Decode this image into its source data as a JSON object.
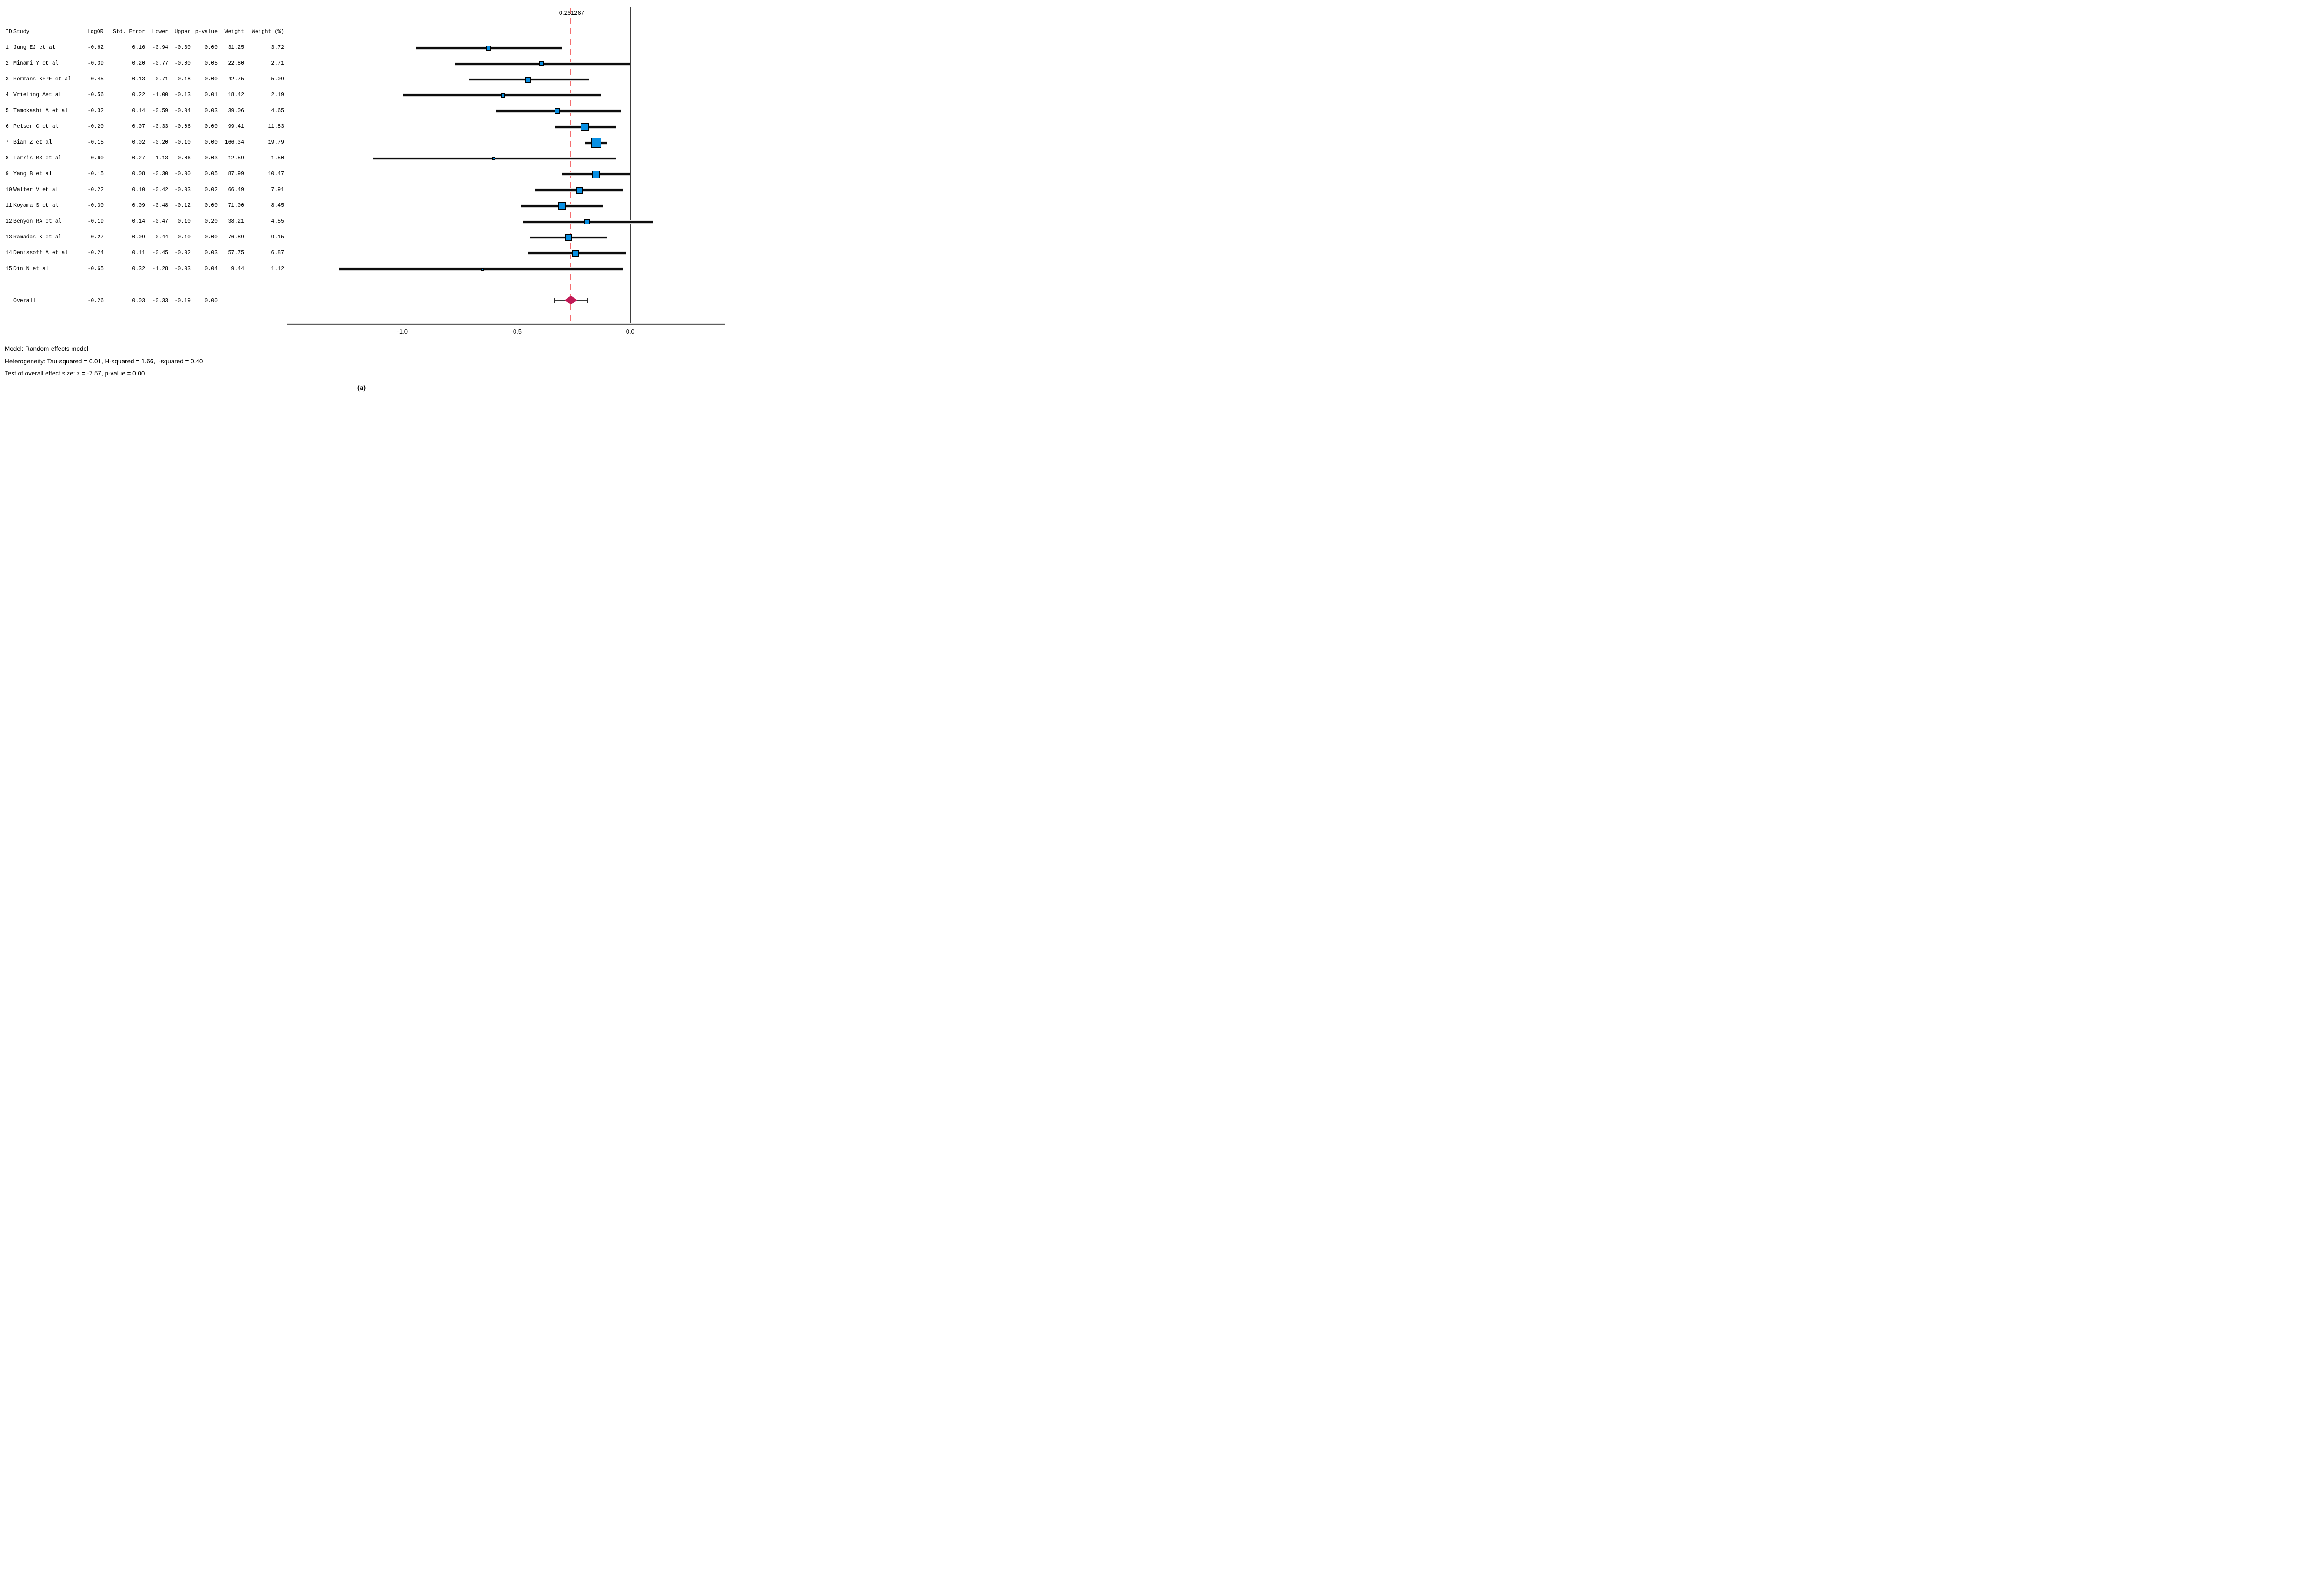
{
  "figure": {
    "caption": "(a)"
  },
  "table": {
    "headers": {
      "id": "ID",
      "study": "Study",
      "logor": "LogOR",
      "stderr": "Std. Error",
      "lower": "Lower",
      "upper": "Upper",
      "pvalue": "p-value",
      "weight": "Weight",
      "weight_pct": "Weight (%)"
    },
    "overall_label": "Overall"
  },
  "plot": {
    "effect_label": "-0.261267",
    "effect_value": -0.261267
  },
  "footer": {
    "lines": [
      "Model: Random-effects model",
      "Heterogeneity: Tau-squared = 0.01, H-squared = 1.66, I-squared = 0.40",
      "Test of overall effect size: z = -7.57, p-value = 0.00"
    ]
  },
  "colors": {
    "marker_blue": "#0890e4",
    "diamond_crimson": "#c21a57",
    "dashed_red": "#f46d6e",
    "axis_grey": "#5e5e5e",
    "ci_black": "#0d0d0d",
    "zero_line_grey": "#3d3d3d"
  },
  "chart_data": {
    "type": "forest",
    "title": "",
    "xlabel": "",
    "x_ticks": [
      -1.0,
      -0.5,
      0.0
    ],
    "x_tick_labels": [
      "-1.0",
      "-0.5",
      "0.0"
    ],
    "xlim": [
      -1.5,
      0.45
    ],
    "pooled_effect_line": -0.261267,
    "legend": "none",
    "grid": "off",
    "studies": [
      {
        "id": "1",
        "study": "Jung EJ et al",
        "logor": "-0.62",
        "se": "0.16",
        "lower": "-0.94",
        "upper": "-0.30",
        "p": "0.00",
        "weight": "31.25",
        "weight_pct": "3.72"
      },
      {
        "id": "2",
        "study": "Minami Y et al",
        "logor": "-0.39",
        "se": "0.20",
        "lower": "-0.77",
        "upper": "-0.00",
        "p": "0.05",
        "weight": "22.80",
        "weight_pct": "2.71"
      },
      {
        "id": "3",
        "study": "Hermans KEPE et al",
        "logor": "-0.45",
        "se": "0.13",
        "lower": "-0.71",
        "upper": "-0.18",
        "p": "0.00",
        "weight": "42.75",
        "weight_pct": "5.09"
      },
      {
        "id": "4",
        "study": "Vrieling Aet al",
        "logor": "-0.56",
        "se": "0.22",
        "lower": "-1.00",
        "upper": "-0.13",
        "p": "0.01",
        "weight": "18.42",
        "weight_pct": "2.19"
      },
      {
        "id": "5",
        "study": "Tamokashi A et al",
        "logor": "-0.32",
        "se": "0.14",
        "lower": "-0.59",
        "upper": "-0.04",
        "p": "0.03",
        "weight": "39.06",
        "weight_pct": "4.65"
      },
      {
        "id": "6",
        "study": "Pelser C et al",
        "logor": "-0.20",
        "se": "0.07",
        "lower": "-0.33",
        "upper": "-0.06",
        "p": "0.00",
        "weight": "99.41",
        "weight_pct": "11.83"
      },
      {
        "id": "7",
        "study": "Bian Z et al",
        "logor": "-0.15",
        "se": "0.02",
        "lower": "-0.20",
        "upper": "-0.10",
        "p": "0.00",
        "weight": "166.34",
        "weight_pct": "19.79"
      },
      {
        "id": "8",
        "study": "Farris MS et al",
        "logor": "-0.60",
        "se": "0.27",
        "lower": "-1.13",
        "upper": "-0.06",
        "p": "0.03",
        "weight": "12.59",
        "weight_pct": "1.50"
      },
      {
        "id": "9",
        "study": "Yang B et al",
        "logor": "-0.15",
        "se": "0.08",
        "lower": "-0.30",
        "upper": "-0.00",
        "p": "0.05",
        "weight": "87.99",
        "weight_pct": "10.47"
      },
      {
        "id": "10",
        "study": "Walter V et al",
        "logor": "-0.22",
        "se": "0.10",
        "lower": "-0.42",
        "upper": "-0.03",
        "p": "0.02",
        "weight": "66.49",
        "weight_pct": "7.91"
      },
      {
        "id": "11",
        "study": "Koyama S et al",
        "logor": "-0.30",
        "se": "0.09",
        "lower": "-0.48",
        "upper": "-0.12",
        "p": "0.00",
        "weight": "71.00",
        "weight_pct": "8.45"
      },
      {
        "id": "12",
        "study": "Benyon RA et al",
        "logor": "-0.19",
        "se": "0.14",
        "lower": "-0.47",
        "upper": "0.10",
        "p": "0.20",
        "weight": "38.21",
        "weight_pct": "4.55"
      },
      {
        "id": "13",
        "study": "Ramadas K et al",
        "logor": "-0.27",
        "se": "0.09",
        "lower": "-0.44",
        "upper": "-0.10",
        "p": "0.00",
        "weight": "76.89",
        "weight_pct": "9.15"
      },
      {
        "id": "14",
        "study": "Denissoff A et al",
        "logor": "-0.24",
        "se": "0.11",
        "lower": "-0.45",
        "upper": "-0.02",
        "p": "0.03",
        "weight": "57.75",
        "weight_pct": "6.87"
      },
      {
        "id": "15",
        "study": "Din N et al",
        "logor": "-0.65",
        "se": "0.32",
        "lower": "-1.28",
        "upper": "-0.03",
        "p": "0.04",
        "weight": "9.44",
        "weight_pct": "1.12"
      }
    ],
    "overall": {
      "label": "Overall",
      "logor": "-0.26",
      "se": "0.03",
      "lower": "-0.33",
      "upper": "-0.19",
      "p": "0.00"
    }
  }
}
